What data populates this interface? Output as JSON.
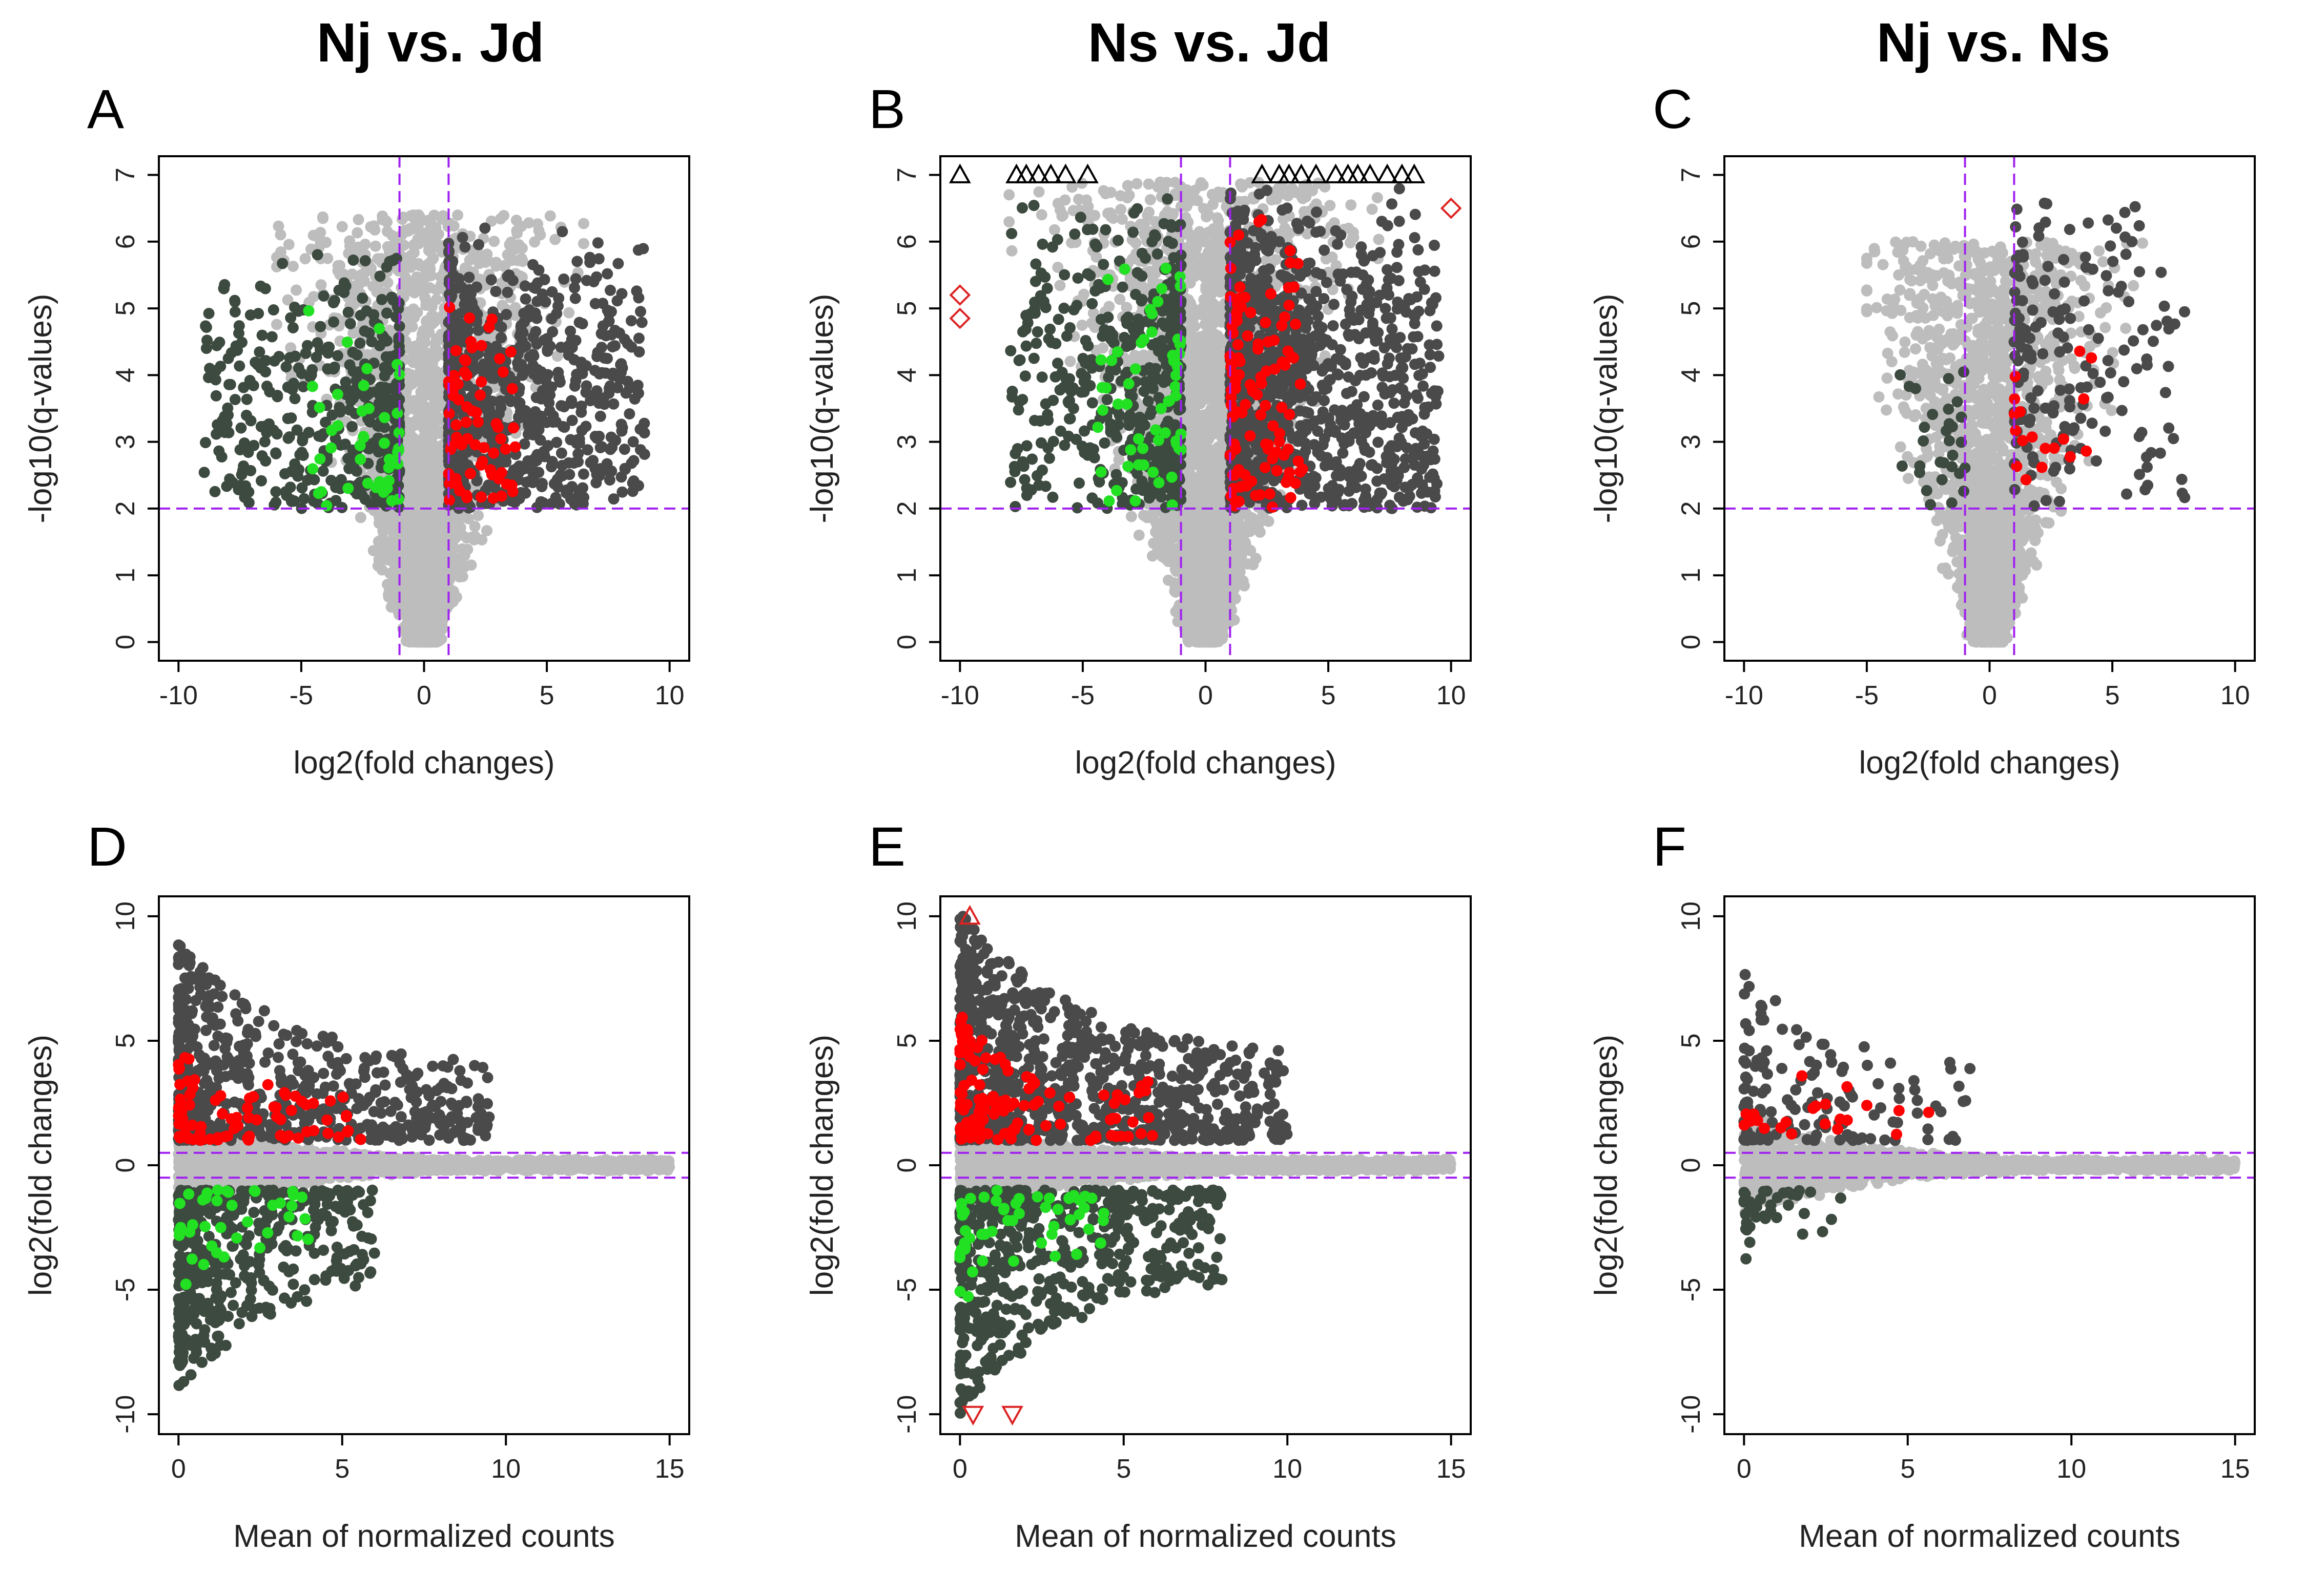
{
  "column_titles": [
    "Nj vs. Jd",
    "Ns vs. Jd",
    "Nj vs. Ns"
  ],
  "panel_letters": [
    "A",
    "B",
    "C",
    "D",
    "E",
    "F"
  ],
  "colors": {
    "not_significant": "#bdbdbd",
    "significant_up": "#4a4a4a",
    "significant_down": "#3d4a3f",
    "highlight_up": "#ff0000",
    "highlight_down": "#22e022",
    "threshold_line": "#a020f0",
    "clipped_triangle": "#000000",
    "clipped_diamond": "#dd2222"
  },
  "chart_data": [
    {
      "id": "A",
      "type": "scatter",
      "title": "Nj vs. Jd",
      "xlabel": "log2(fold changes)",
      "ylabel": "-log10(q-values)",
      "xlim": [
        -10,
        10
      ],
      "ylim": [
        0,
        7
      ],
      "xticks": [
        -10,
        -5,
        0,
        5,
        10
      ],
      "yticks": [
        0,
        1,
        2,
        3,
        4,
        5,
        6,
        7
      ],
      "thresholds": {
        "x": [
          -1,
          1
        ],
        "y": [
          2
        ]
      },
      "series": [
        {
          "role": "not_significant",
          "x_range": [
            -6,
            6.5
          ],
          "y_range": [
            0,
            6.4
          ],
          "count": 2500
        },
        {
          "role": "significant_down",
          "x_range": [
            -9,
            -1
          ],
          "y_range": [
            2,
            6.1
          ],
          "count": 400
        },
        {
          "role": "significant_up",
          "x_range": [
            1,
            9
          ],
          "y_range": [
            2,
            6.4
          ],
          "count": 700
        },
        {
          "role": "highlight_down",
          "x_range": [
            -4.7,
            -1
          ],
          "y_range": [
            2,
            5.3
          ],
          "count": 45
        },
        {
          "role": "highlight_up",
          "x_range": [
            1,
            4
          ],
          "y_range": [
            2,
            5.4
          ],
          "count": 70
        }
      ]
    },
    {
      "id": "B",
      "type": "scatter",
      "title": "Ns vs. Jd",
      "xlabel": "log2(fold changes)",
      "ylabel": "-log10(q-values)",
      "xlim": [
        -10,
        10
      ],
      "ylim": [
        0,
        7
      ],
      "xticks": [
        -10,
        -5,
        0,
        5,
        10
      ],
      "yticks": [
        0,
        1,
        2,
        3,
        4,
        5,
        6,
        7
      ],
      "thresholds": {
        "x": [
          -1,
          1
        ],
        "y": [
          2
        ]
      },
      "series": [
        {
          "role": "not_significant",
          "x_range": [
            -8,
            9
          ],
          "y_range": [
            0,
            6.9
          ],
          "count": 2800
        },
        {
          "role": "significant_down",
          "x_range": [
            -8,
            -1
          ],
          "y_range": [
            2,
            6.8
          ],
          "count": 450
        },
        {
          "role": "significant_up",
          "x_range": [
            1,
            9.5
          ],
          "y_range": [
            2,
            7
          ],
          "count": 1000
        },
        {
          "role": "highlight_down",
          "x_range": [
            -5,
            -1
          ],
          "y_range": [
            2,
            6.1
          ],
          "count": 60
        },
        {
          "role": "highlight_up",
          "x_range": [
            1,
            4
          ],
          "y_range": [
            2,
            6.8
          ],
          "count": 110
        }
      ],
      "clipped_triangles": [
        {
          "x": -10,
          "y": 7
        },
        {
          "x": -7.7,
          "y": 7
        },
        {
          "x": -7.3,
          "y": 7
        },
        {
          "x": -6.8,
          "y": 7
        },
        {
          "x": -6.3,
          "y": 7
        },
        {
          "x": -5.7,
          "y": 7
        },
        {
          "x": -4.8,
          "y": 7
        },
        {
          "x": 2.3,
          "y": 7
        },
        {
          "x": 3.0,
          "y": 7
        },
        {
          "x": 3.4,
          "y": 7
        },
        {
          "x": 3.9,
          "y": 7
        },
        {
          "x": 4.5,
          "y": 7
        },
        {
          "x": 5.3,
          "y": 7
        },
        {
          "x": 5.8,
          "y": 7
        },
        {
          "x": 6.2,
          "y": 7
        },
        {
          "x": 6.7,
          "y": 7
        },
        {
          "x": 7.4,
          "y": 7
        },
        {
          "x": 8.0,
          "y": 7
        },
        {
          "x": 8.5,
          "y": 7
        }
      ],
      "clipped_diamonds": [
        {
          "x": -10,
          "y": 5.2
        },
        {
          "x": -10,
          "y": 4.85
        },
        {
          "x": 10,
          "y": 6.5
        }
      ]
    },
    {
      "id": "C",
      "type": "scatter",
      "title": "Nj vs. Ns",
      "xlabel": "log2(fold changes)",
      "ylabel": "-log10(q-values)",
      "xlim": [
        -10,
        10
      ],
      "ylim": [
        0,
        7
      ],
      "xticks": [
        -10,
        -5,
        0,
        5,
        10
      ],
      "yticks": [
        0,
        1,
        2,
        3,
        4,
        5,
        6,
        7
      ],
      "thresholds": {
        "x": [
          -1,
          1
        ],
        "y": [
          2
        ]
      },
      "series": [
        {
          "role": "not_significant",
          "x_range": [
            -5,
            8
          ],
          "y_range": [
            0,
            6
          ],
          "count": 2000
        },
        {
          "role": "significant_down",
          "x_range": [
            -5,
            -1
          ],
          "y_range": [
            2,
            4.3
          ],
          "count": 30
        },
        {
          "role": "significant_up",
          "x_range": [
            1,
            8
          ],
          "y_range": [
            2,
            7
          ],
          "count": 170
        },
        {
          "role": "highlight_up",
          "x_range": [
            1,
            4.5
          ],
          "y_range": [
            2.3,
            4.8
          ],
          "count": 18
        }
      ]
    },
    {
      "id": "D",
      "type": "scatter",
      "title": "",
      "xlabel": "Mean of normalized counts",
      "ylabel": "log2(fold changes)",
      "xlim": [
        0,
        15
      ],
      "ylim": [
        -10,
        10
      ],
      "xticks": [
        0,
        5,
        10,
        15
      ],
      "yticks": [
        -10,
        -5,
        0,
        5,
        10
      ],
      "thresholds": {
        "y": [
          -0.5,
          0.5
        ]
      },
      "series": [
        {
          "role": "not_significant",
          "x_range": [
            0,
            15
          ],
          "y_range": [
            -2,
            2
          ],
          "count": 2500
        },
        {
          "role": "significant_up",
          "x_range": [
            0,
            9.5
          ],
          "y_range": [
            1,
            9
          ],
          "count": 600
        },
        {
          "role": "significant_down",
          "x_range": [
            0,
            6
          ],
          "y_range": [
            -9,
            -1
          ],
          "count": 450
        },
        {
          "role": "highlight_up",
          "x_range": [
            0,
            5.6
          ],
          "y_range": [
            1,
            4.5
          ],
          "count": 80
        },
        {
          "role": "highlight_down",
          "x_range": [
            0,
            4
          ],
          "y_range": [
            -5,
            -1
          ],
          "count": 40
        }
      ]
    },
    {
      "id": "E",
      "type": "scatter",
      "title": "",
      "xlabel": "Mean of normalized counts",
      "ylabel": "log2(fold changes)",
      "xlim": [
        0,
        15
      ],
      "ylim": [
        -10,
        10
      ],
      "xticks": [
        0,
        5,
        10,
        15
      ],
      "yticks": [
        -10,
        -5,
        0,
        5,
        10
      ],
      "thresholds": {
        "y": [
          -0.5,
          0.5
        ]
      },
      "series": [
        {
          "role": "not_significant",
          "x_range": [
            0,
            15
          ],
          "y_range": [
            -2,
            2
          ],
          "count": 2800
        },
        {
          "role": "significant_up",
          "x_range": [
            0,
            10
          ],
          "y_range": [
            1,
            10.3
          ],
          "count": 900
        },
        {
          "role": "significant_down",
          "x_range": [
            0,
            8
          ],
          "y_range": [
            -10,
            -1
          ],
          "count": 550
        },
        {
          "role": "highlight_up",
          "x_range": [
            0,
            6
          ],
          "y_range": [
            1,
            6
          ],
          "count": 120
        },
        {
          "role": "highlight_down",
          "x_range": [
            0,
            4.5
          ],
          "y_range": [
            -5.5,
            -1
          ],
          "count": 55
        }
      ],
      "clipped_triangles_up": [
        {
          "x": 0.3,
          "y": 10
        }
      ],
      "clipped_triangles_down": [
        {
          "x": 0.4,
          "y": -10
        },
        {
          "x": 1.6,
          "y": -10
        }
      ]
    },
    {
      "id": "F",
      "type": "scatter",
      "title": "",
      "xlabel": "Mean of normalized counts",
      "ylabel": "log2(fold changes)",
      "xlim": [
        0,
        15
      ],
      "ylim": [
        -10,
        10
      ],
      "xticks": [
        0,
        5,
        10,
        15
      ],
      "yticks": [
        -10,
        -5,
        0,
        5,
        10
      ],
      "thresholds": {
        "y": [
          -0.5,
          0.5
        ]
      },
      "series": [
        {
          "role": "not_significant",
          "x_range": [
            0,
            15
          ],
          "y_range": [
            -2,
            2
          ],
          "count": 2200
        },
        {
          "role": "significant_up",
          "x_range": [
            0,
            7
          ],
          "y_range": [
            1,
            8
          ],
          "count": 140
        },
        {
          "role": "significant_down",
          "x_range": [
            0,
            3
          ],
          "y_range": [
            -4.5,
            -1
          ],
          "count": 40
        },
        {
          "role": "highlight_up",
          "x_range": [
            0,
            6
          ],
          "y_range": [
            1.2,
            4.5
          ],
          "count": 22
        }
      ]
    }
  ]
}
